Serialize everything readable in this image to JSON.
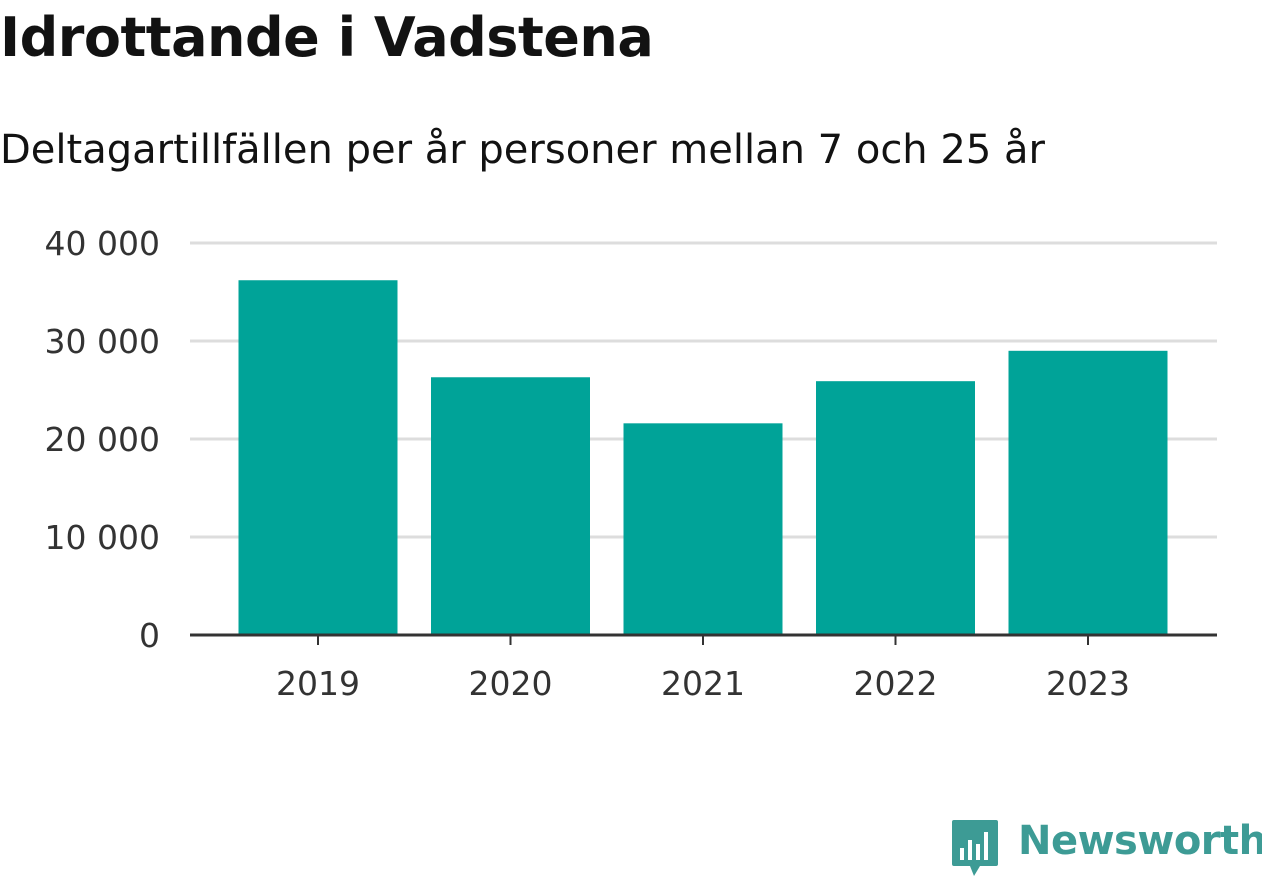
{
  "header": {
    "title": "Idrottande i Vadstena",
    "subtitle": "Deltagartillfällen per år personer mellan 7 och 25 år"
  },
  "brand": {
    "name": "Newsworthy",
    "color": "#3d9b95"
  },
  "colors": {
    "bar": "#00a398",
    "grid": "#dddddd",
    "axis": "#333333",
    "tick_text": "#333333"
  },
  "chart_data": {
    "type": "bar",
    "title": "Idrottande i Vadstena",
    "subtitle": "Deltagartillfällen per år personer mellan 7 och 25 år",
    "xlabel": "",
    "ylabel": "",
    "categories": [
      "2019",
      "2020",
      "2021",
      "2022",
      "2023"
    ],
    "values": [
      36200,
      26300,
      21600,
      25900,
      29000
    ],
    "ylim": [
      0,
      40000
    ],
    "yticks": [
      0,
      10000,
      20000,
      30000,
      40000
    ],
    "ytick_labels": [
      "0",
      "10 000",
      "20 000",
      "30 000",
      "40 000"
    ],
    "grid": true,
    "legend": "none"
  }
}
